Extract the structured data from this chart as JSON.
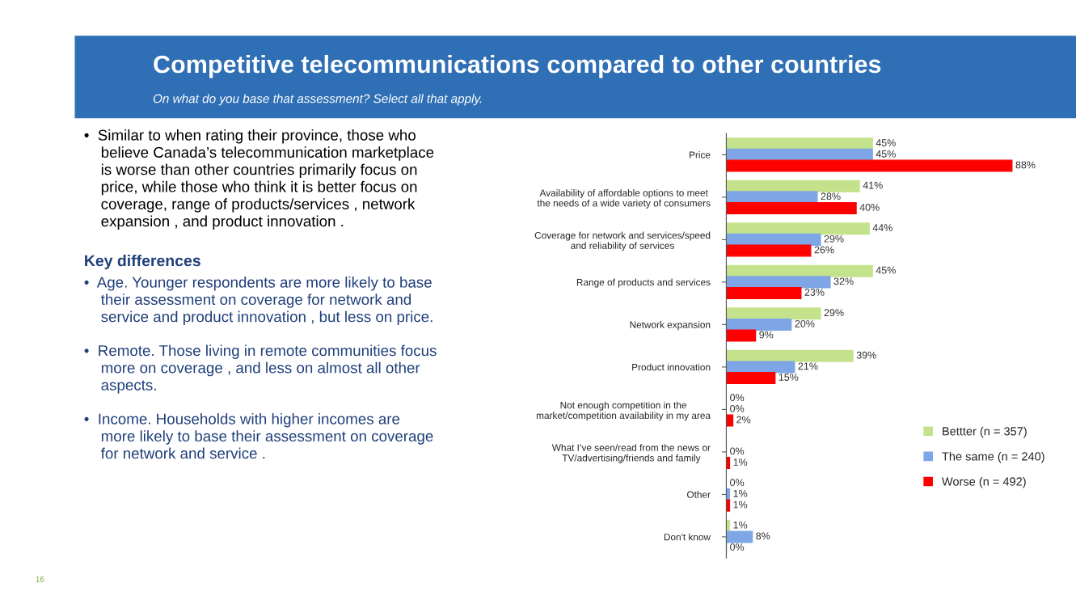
{
  "chart_data": {
    "type": "bar",
    "orientation": "horizontal",
    "title": "Competitive telecommunications compared to other countries",
    "subtitle": "On what do you base that assessment? Select all that apply.",
    "categories": [
      "Price",
      "Availability of affordable options to meet\nthe needs of a wide variety of consumers",
      "Coverage for network and services/speed\nand reliability of services",
      "Range of products and services",
      "Network expansion",
      "Product innovation",
      "Not enough competition in the\nmarket/competition availability in my area",
      "What I’ve seen/read from the news or\nTV/advertising/friends and family",
      "Other",
      "Don't know"
    ],
    "series": [
      {
        "name": "Bettter (n = 357)",
        "color": "#c3e28b",
        "values": [
          45,
          41,
          44,
          45,
          29,
          39,
          0,
          0,
          0,
          1
        ],
        "value_labels": [
          "45%",
          "41%",
          "44%",
          "45%",
          "29%",
          "39%",
          "0%",
          null,
          "0%",
          "1%"
        ]
      },
      {
        "name": "The same (n = 240)",
        "color": "#7ea6e6",
        "values": [
          45,
          28,
          29,
          32,
          20,
          21,
          0,
          0,
          1,
          8
        ],
        "value_labels": [
          "45%",
          "28%",
          "29%",
          "32%",
          "20%",
          "21%",
          "0%",
          "0%",
          "1%",
          "8%"
        ]
      },
      {
        "name": "Worse (n = 492)",
        "color": "#ff0000",
        "values": [
          88,
          40,
          26,
          23,
          9,
          15,
          2,
          1,
          1,
          0
        ],
        "value_labels": [
          "88%",
          "40%",
          "26%",
          "23%",
          "9%",
          "15%",
          "2%",
          "1%",
          "1%",
          "0%"
        ]
      }
    ],
    "legend": "bottom right",
    "grid": false,
    "annotations": [
      "•  Similar to when rating their province, those who\n    believe Canada’s telecommunication marketplace\n    is worse than other countries primarily focus on\n    price, while those who think it is better focus on\n    coverage, range of products/services , network\n    expansion , and product innovation .",
      "Key differences",
      "•  Age. Younger respondents are more likely to base\n    their assessment on coverage for network and\n    service and product innovation , but less on price.",
      "•  Remote. Those living in remote communities focus\n    more on coverage , and less on almost all other\n    aspects.",
      "•  Income. Households with higher incomes are\n    more likely to base their assessment on coverage\n    for network and service .",
      "16"
    ]
  }
}
